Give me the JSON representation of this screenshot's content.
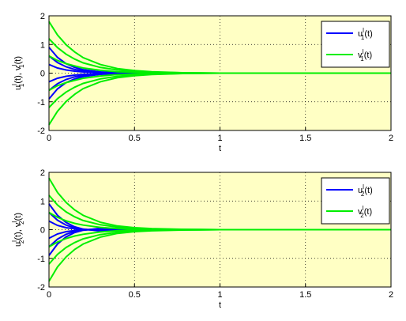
{
  "chart_data": [
    {
      "type": "line",
      "xlabel": "t",
      "ylabel": [
        [
          "u",
          ""
        ],
        [
          "l",
          "sup"
        ],
        [
          "1",
          "sub"
        ],
        [
          "(t), v",
          ""
        ],
        [
          "l",
          "sup"
        ],
        [
          "1",
          "sub"
        ],
        [
          "(t)",
          ""
        ]
      ],
      "x": [
        0,
        0.05,
        0.1,
        0.15,
        0.2,
        0.3,
        0.4,
        0.5,
        0.6,
        0.8,
        1,
        2
      ],
      "xlim": [
        0,
        2
      ],
      "xticks": [
        0,
        0.5,
        1,
        1.5,
        2
      ],
      "ylim": [
        -2,
        2
      ],
      "yticks": [
        -2,
        -1,
        0,
        1,
        2
      ],
      "grid": true,
      "legend": "upper-right",
      "series": [
        {
          "name": [
            [
              "u",
              ""
            ],
            [
              "l",
              "sup"
            ],
            [
              "1",
              "sub"
            ],
            [
              "(t)",
              ""
            ]
          ],
          "color": "#0000ff",
          "values": [
            [
              0.9,
              0.55,
              0.33,
              0.2,
              0.12,
              0.04,
              0.02,
              0.01,
              0,
              0,
              0,
              0
            ],
            [
              0.6,
              0.37,
              0.22,
              0.13,
              0.08,
              0.03,
              0.01,
              0,
              0,
              0,
              0,
              0
            ],
            [
              0.3,
              0.18,
              0.11,
              0.07,
              0.04,
              0.02,
              0.01,
              0,
              0,
              0,
              0,
              0
            ],
            [
              -0.3,
              -0.18,
              -0.11,
              -0.07,
              -0.04,
              -0.02,
              -0.01,
              0,
              0,
              0,
              0,
              0
            ],
            [
              -0.6,
              -0.37,
              -0.22,
              -0.13,
              -0.08,
              -0.03,
              -0.01,
              0,
              0,
              0,
              0,
              0
            ],
            [
              -0.9,
              -0.55,
              -0.33,
              -0.2,
              -0.12,
              -0.04,
              -0.02,
              -0.01,
              0,
              0,
              0,
              0
            ]
          ]
        },
        {
          "name": [
            [
              "v",
              ""
            ],
            [
              "l",
              "sup"
            ],
            [
              "1",
              "sub"
            ],
            [
              "(t)",
              ""
            ]
          ],
          "color": "#00ee00",
          "values": [
            [
              1.8,
              1.33,
              0.99,
              0.74,
              0.54,
              0.3,
              0.16,
              0.09,
              0.05,
              0.01,
              0,
              0
            ],
            [
              1.2,
              0.89,
              0.66,
              0.49,
              0.36,
              0.2,
              0.11,
              0.06,
              0.03,
              0.01,
              0,
              0
            ],
            [
              0.6,
              0.44,
              0.33,
              0.25,
              0.18,
              0.1,
              0.05,
              0.03,
              0.02,
              0,
              0,
              0
            ],
            [
              -0.6,
              -0.44,
              -0.33,
              -0.25,
              -0.18,
              -0.1,
              -0.05,
              -0.03,
              -0.02,
              0,
              0,
              0
            ],
            [
              -1.2,
              -0.89,
              -0.66,
              -0.49,
              -0.36,
              -0.2,
              -0.11,
              -0.06,
              -0.03,
              -0.01,
              0,
              0
            ],
            [
              -1.8,
              -1.33,
              -0.99,
              -0.74,
              -0.54,
              -0.3,
              -0.16,
              -0.09,
              -0.05,
              -0.01,
              0,
              0
            ]
          ]
        }
      ]
    },
    {
      "type": "line",
      "xlabel": "t",
      "ylabel": [
        [
          "u",
          ""
        ],
        [
          "l",
          "sup"
        ],
        [
          "2",
          "sub"
        ],
        [
          "(t), v",
          ""
        ],
        [
          "l",
          "sup"
        ],
        [
          "2",
          "sub"
        ],
        [
          "(t)",
          ""
        ]
      ],
      "x": [
        0,
        0.05,
        0.1,
        0.15,
        0.2,
        0.3,
        0.4,
        0.5,
        0.6,
        0.8,
        1,
        2
      ],
      "xlim": [
        0,
        2
      ],
      "xticks": [
        0,
        0.5,
        1,
        1.5,
        2
      ],
      "ylim": [
        -2,
        2
      ],
      "yticks": [
        -2,
        -1,
        0,
        1,
        2
      ],
      "grid": true,
      "legend": "upper-right",
      "series": [
        {
          "name": [
            [
              "u",
              ""
            ],
            [
              "l",
              "sup"
            ],
            [
              "2",
              "sub"
            ],
            [
              "(t)",
              ""
            ]
          ],
          "color": "#0000ff",
          "values": [
            [
              0.9,
              0.5,
              0.25,
              0.1,
              0.02,
              -0.05,
              -0.04,
              -0.02,
              -0.01,
              0,
              0,
              0
            ],
            [
              0.6,
              0.33,
              0.16,
              0.06,
              0.01,
              -0.03,
              -0.03,
              -0.01,
              0,
              0,
              0,
              0
            ],
            [
              0.3,
              0.15,
              0.07,
              0.03,
              0.01,
              -0.01,
              -0.01,
              0,
              0,
              0,
              0,
              0
            ],
            [
              -0.3,
              -0.15,
              -0.07,
              -0.03,
              -0.01,
              0.01,
              0.01,
              0,
              0,
              0,
              0,
              0
            ],
            [
              -0.6,
              -0.33,
              -0.16,
              -0.06,
              -0.01,
              0.03,
              0.03,
              0.01,
              0,
              0,
              0,
              0
            ],
            [
              -0.9,
              -0.5,
              -0.25,
              -0.1,
              -0.02,
              0.05,
              0.04,
              0.02,
              0.01,
              0,
              0,
              0
            ]
          ]
        },
        {
          "name": [
            [
              "v",
              ""
            ],
            [
              "l",
              "sup"
            ],
            [
              "2",
              "sub"
            ],
            [
              "(t)",
              ""
            ]
          ],
          "color": "#00ee00",
          "values": [
            [
              1.8,
              1.3,
              0.95,
              0.69,
              0.5,
              0.26,
              0.13,
              0.07,
              0.04,
              0.01,
              0,
              0
            ],
            [
              1.2,
              0.86,
              0.62,
              0.45,
              0.32,
              0.17,
              0.09,
              0.05,
              0.02,
              0.01,
              0,
              0
            ],
            [
              0.6,
              0.43,
              0.31,
              0.22,
              0.16,
              0.08,
              0.04,
              0.02,
              0.01,
              0,
              0,
              0
            ],
            [
              -0.6,
              -0.43,
              -0.31,
              -0.22,
              -0.16,
              -0.08,
              -0.04,
              -0.02,
              -0.01,
              0,
              0,
              0
            ],
            [
              -1.2,
              -0.86,
              -0.62,
              -0.45,
              -0.32,
              -0.17,
              -0.09,
              -0.05,
              -0.02,
              -0.01,
              0,
              0
            ],
            [
              -1.8,
              -1.3,
              -0.95,
              -0.69,
              -0.5,
              -0.26,
              -0.13,
              -0.07,
              -0.04,
              -0.01,
              0,
              0
            ]
          ]
        }
      ]
    }
  ]
}
